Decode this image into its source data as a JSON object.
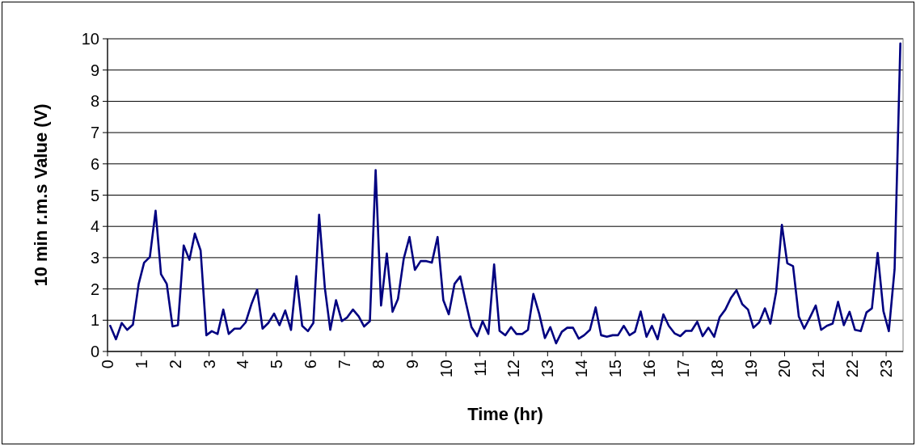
{
  "chart_data": {
    "type": "line",
    "xlabel": "Time (hr)",
    "ylabel": "10 min r.m.s Value (V)",
    "x": [
      0.08,
      0.25,
      0.42,
      0.58,
      0.75,
      0.92,
      1.08,
      1.25,
      1.42,
      1.58,
      1.75,
      1.92,
      2.08,
      2.25,
      2.42,
      2.58,
      2.75,
      2.92,
      3.08,
      3.25,
      3.42,
      3.58,
      3.75,
      3.92,
      4.08,
      4.25,
      4.42,
      4.58,
      4.75,
      4.92,
      5.08,
      5.25,
      5.42,
      5.58,
      5.75,
      5.92,
      6.08,
      6.25,
      6.42,
      6.58,
      6.75,
      6.92,
      7.08,
      7.25,
      7.42,
      7.58,
      7.75,
      7.92,
      8.08,
      8.25,
      8.42,
      8.58,
      8.75,
      8.92,
      9.08,
      9.25,
      9.42,
      9.58,
      9.75,
      9.92,
      10.08,
      10.25,
      10.42,
      10.58,
      10.75,
      10.92,
      11.08,
      11.25,
      11.42,
      11.58,
      11.75,
      11.92,
      12.08,
      12.25,
      12.42,
      12.58,
      12.75,
      12.92,
      13.08,
      13.25,
      13.42,
      13.58,
      13.75,
      13.92,
      14.08,
      14.25,
      14.42,
      14.58,
      14.75,
      14.92,
      15.08,
      15.25,
      15.42,
      15.58,
      15.75,
      15.92,
      16.08,
      16.25,
      16.42,
      16.58,
      16.75,
      16.92,
      17.08,
      17.25,
      17.42,
      17.58,
      17.75,
      17.92,
      18.08,
      18.25,
      18.42,
      18.58,
      18.75,
      18.92,
      19.08,
      19.25,
      19.42,
      19.58,
      19.75,
      19.92,
      20.08,
      20.25,
      20.42,
      20.58,
      20.75,
      20.92,
      21.08,
      21.25,
      21.42,
      21.58,
      21.75,
      21.92,
      22.08,
      22.25,
      22.42,
      22.58,
      22.75,
      22.92,
      23.08,
      23.25,
      23.42
    ],
    "series": [
      {
        "color": "#000080",
        "values": [
          0.82,
          0.39,
          0.91,
          0.69,
          0.86,
          2.16,
          2.84,
          3.02,
          4.5,
          2.47,
          2.16,
          0.8,
          0.84,
          3.39,
          2.93,
          3.77,
          3.23,
          0.52,
          0.65,
          0.56,
          1.34,
          0.56,
          0.73,
          0.73,
          0.93,
          1.51,
          1.98,
          0.73,
          0.91,
          1.21,
          0.84,
          1.31,
          0.69,
          2.41,
          0.82,
          0.65,
          0.91,
          4.37,
          2.03,
          0.69,
          1.64,
          0.97,
          1.09,
          1.34,
          1.12,
          0.8,
          0.97,
          5.8,
          1.47,
          3.13,
          1.27,
          1.68,
          2.97,
          3.66,
          2.61,
          2.89,
          2.89,
          2.84,
          3.66,
          1.64,
          1.19,
          2.16,
          2.4,
          1.59,
          0.78,
          0.49,
          0.97,
          0.56,
          2.78,
          0.66,
          0.52,
          0.78,
          0.56,
          0.56,
          0.69,
          1.84,
          1.21,
          0.43,
          0.78,
          0.26,
          0.63,
          0.76,
          0.76,
          0.41,
          0.52,
          0.69,
          1.41,
          0.52,
          0.47,
          0.52,
          0.52,
          0.82,
          0.52,
          0.63,
          1.28,
          0.47,
          0.82,
          0.39,
          1.19,
          0.82,
          0.58,
          0.49,
          0.66,
          0.66,
          0.95,
          0.49,
          0.76,
          0.47,
          1.09,
          1.34,
          1.72,
          1.96,
          1.51,
          1.34,
          0.76,
          0.93,
          1.38,
          0.89,
          1.9,
          4.05,
          2.82,
          2.73,
          1.12,
          0.73,
          1.09,
          1.47,
          0.69,
          0.82,
          0.89,
          1.59,
          0.84,
          1.27,
          0.69,
          0.65,
          1.25,
          1.38,
          3.15,
          1.29,
          0.65,
          2.63,
          9.85
        ]
      }
    ],
    "xlim": [
      0,
      23.5
    ],
    "xticks": [
      0,
      1,
      2,
      3,
      4,
      5,
      6,
      7,
      8,
      9,
      10,
      11,
      12,
      13,
      14,
      15,
      16,
      17,
      18,
      19,
      20,
      21,
      22,
      23
    ],
    "ylim": [
      0,
      10
    ],
    "yticks": [
      0,
      1,
      2,
      3,
      4,
      5,
      6,
      7,
      8,
      9,
      10
    ],
    "grid": "y"
  }
}
